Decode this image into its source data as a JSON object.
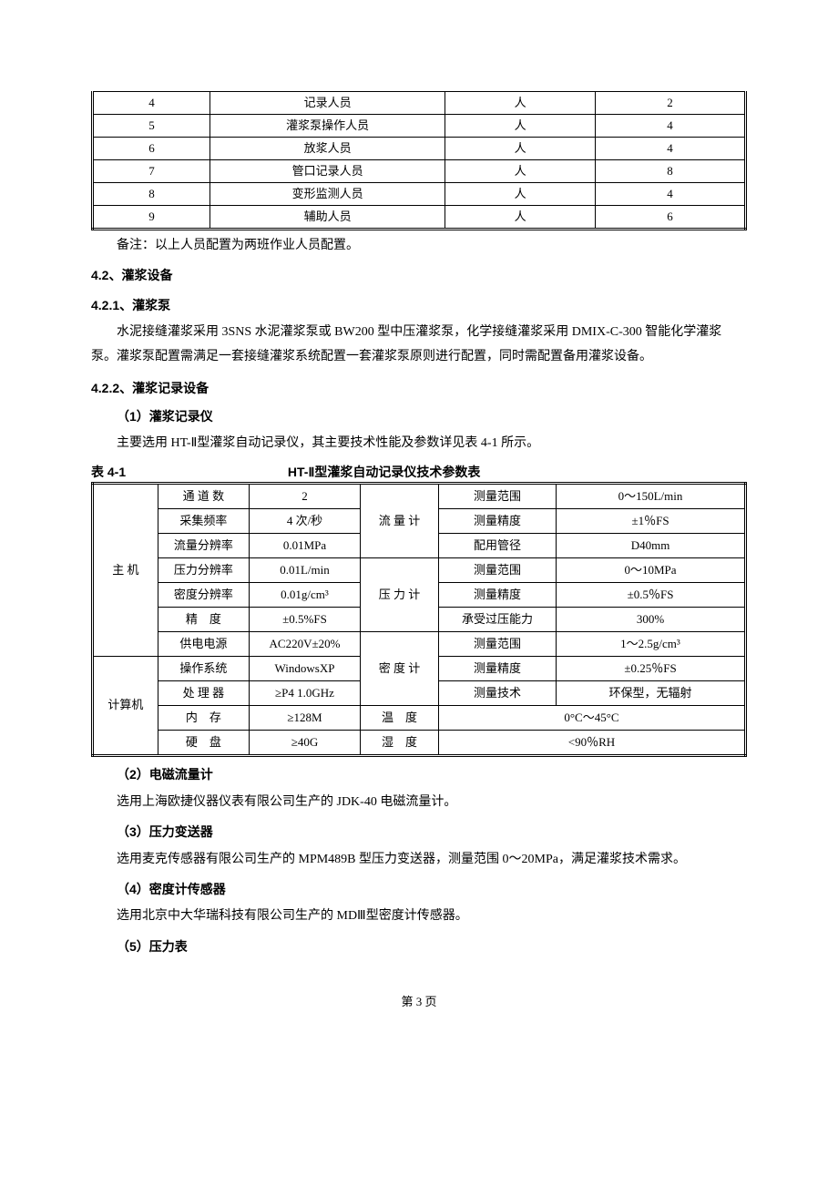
{
  "personnel": {
    "rows": [
      {
        "idx": "4",
        "role": "记录人员",
        "unit": "人",
        "count": "2"
      },
      {
        "idx": "5",
        "role": "灌浆泵操作人员",
        "unit": "人",
        "count": "4"
      },
      {
        "idx": "6",
        "role": "放浆人员",
        "unit": "人",
        "count": "4"
      },
      {
        "idx": "7",
        "role": "管口记录人员",
        "unit": "人",
        "count": "8"
      },
      {
        "idx": "8",
        "role": "变形监测人员",
        "unit": "人",
        "count": "4"
      },
      {
        "idx": "9",
        "role": "辅助人员",
        "unit": "人",
        "count": "6"
      }
    ],
    "note": "备注：以上人员配置为两班作业人员配置。"
  },
  "sec42": "4.2、灌浆设备",
  "sec421": "4.2.1、灌浆泵",
  "para421": "水泥接缝灌浆采用 3SNS 水泥灌浆泵或 BW200 型中压灌浆泵，化学接缝灌浆采用 DMIX-C-300 智能化学灌浆泵。灌浆泵配置需满足一套接缝灌浆系统配置一套灌浆泵原则进行配置，同时需配置备用灌浆设备。",
  "sec422": "4.2.2、灌浆记录设备",
  "h1": "（1）灌浆记录仪",
  "p1": "主要选用 HT-Ⅱ型灌浆自动记录仪，其主要技术性能及参数详见表 4-1 所示。",
  "tcap_left": "表 4-1",
  "tcap_center": "HT-Ⅱ型灌浆自动记录仪技术参数表",
  "spec": {
    "g1": "主 机",
    "r1a": "通 道 数",
    "r1b": "2",
    "g4": "流 量 计",
    "r1c": "测量范围",
    "r1d": "0～150L/min",
    "r2a": "采集频率",
    "r2b": "4 次/秒",
    "r2c": "测量精度",
    "r2d": "±1％FS",
    "r3a": "流量分辨率",
    "r3b": "0.01MPa",
    "r3c": "配用管径",
    "r3d": "D40mm",
    "r4a": "压力分辨率",
    "r4b": "0.01L/min",
    "g5": "压 力 计",
    "r4c": "测量范围",
    "r4d": "0～10MPa",
    "r5a": "密度分辨率",
    "r5b": "0.01g/cm³",
    "r5c": "测量精度",
    "r5d": "±0.5％FS",
    "r6a": "精　度",
    "r6b": "±0.5%FS",
    "r6c": "承受过压能力",
    "r6d": "300%",
    "r7a": "供电电源",
    "r7b": "AC220V±20%",
    "g6": "密 度 计",
    "r7c": "测量范围",
    "r7d": "1～2.5g/cm³",
    "g2": "计算机",
    "r8a": "操作系统",
    "r8b": "WindowsXP",
    "r8c": "测量精度",
    "r8d": "±0.25％FS",
    "r9a": "处 理 器",
    "r9b": "≥P4 1.0GHz",
    "r9c": "测量技术",
    "r9d": "环保型，无辐射",
    "r10a": "内　存",
    "r10b": "≥128M",
    "g7": "温　度",
    "r10cd": "0°C～45°C",
    "r11a": "硬　盘",
    "r11b": "≥40G",
    "g8": "湿　度",
    "r11cd": "<90％RH"
  },
  "h2": "（2）电磁流量计",
  "p2": "选用上海欧捷仪器仪表有限公司生产的 JDK-40 电磁流量计。",
  "h3": "（3）压力变送器",
  "p3": "选用麦克传感器有限公司生产的 MPM489B 型压力变送器，测量范围 0～20MPa，满足灌浆技术需求。",
  "h4": "（4）密度计传感器",
  "p4": "选用北京中大华瑞科技有限公司生产的 MDⅢ型密度计传感器。",
  "h5": "（5）压力表",
  "footer": "第 3 页"
}
